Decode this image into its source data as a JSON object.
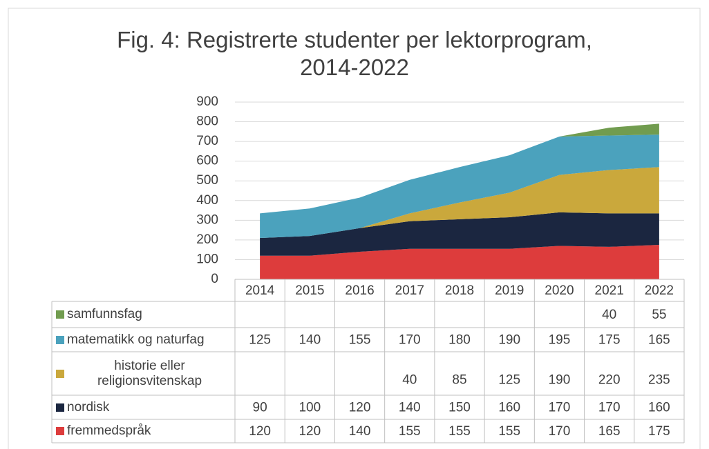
{
  "chart_data": {
    "type": "stacked_area",
    "title": "Fig. 4: Registrerte studenter per lektorprogram, 2014-2022",
    "categories": [
      "2014",
      "2015",
      "2016",
      "2017",
      "2018",
      "2019",
      "2020",
      "2021",
      "2022"
    ],
    "series": [
      {
        "name": "fremmedspråk",
        "color": "#dd3c3c",
        "values": [
          120,
          120,
          140,
          155,
          155,
          155,
          170,
          165,
          175
        ]
      },
      {
        "name": "nordisk",
        "color": "#1b2640",
        "values": [
          90,
          100,
          120,
          140,
          150,
          160,
          170,
          170,
          160
        ]
      },
      {
        "name": "historie eller religionsvitenskap",
        "color": "#caa83c",
        "values": [
          null,
          null,
          null,
          40,
          85,
          125,
          190,
          220,
          235
        ]
      },
      {
        "name": "matematikk og naturfag",
        "color": "#4ba2bd",
        "values": [
          125,
          140,
          155,
          170,
          180,
          190,
          195,
          175,
          165
        ]
      },
      {
        "name": "samfunnsfag",
        "color": "#719c4f",
        "values": [
          null,
          null,
          null,
          null,
          null,
          null,
          null,
          40,
          55
        ]
      }
    ],
    "ylim": [
      0,
      900
    ],
    "yticks": [
      0,
      100,
      200,
      300,
      400,
      500,
      600,
      700,
      800,
      900
    ],
    "grid": true
  }
}
